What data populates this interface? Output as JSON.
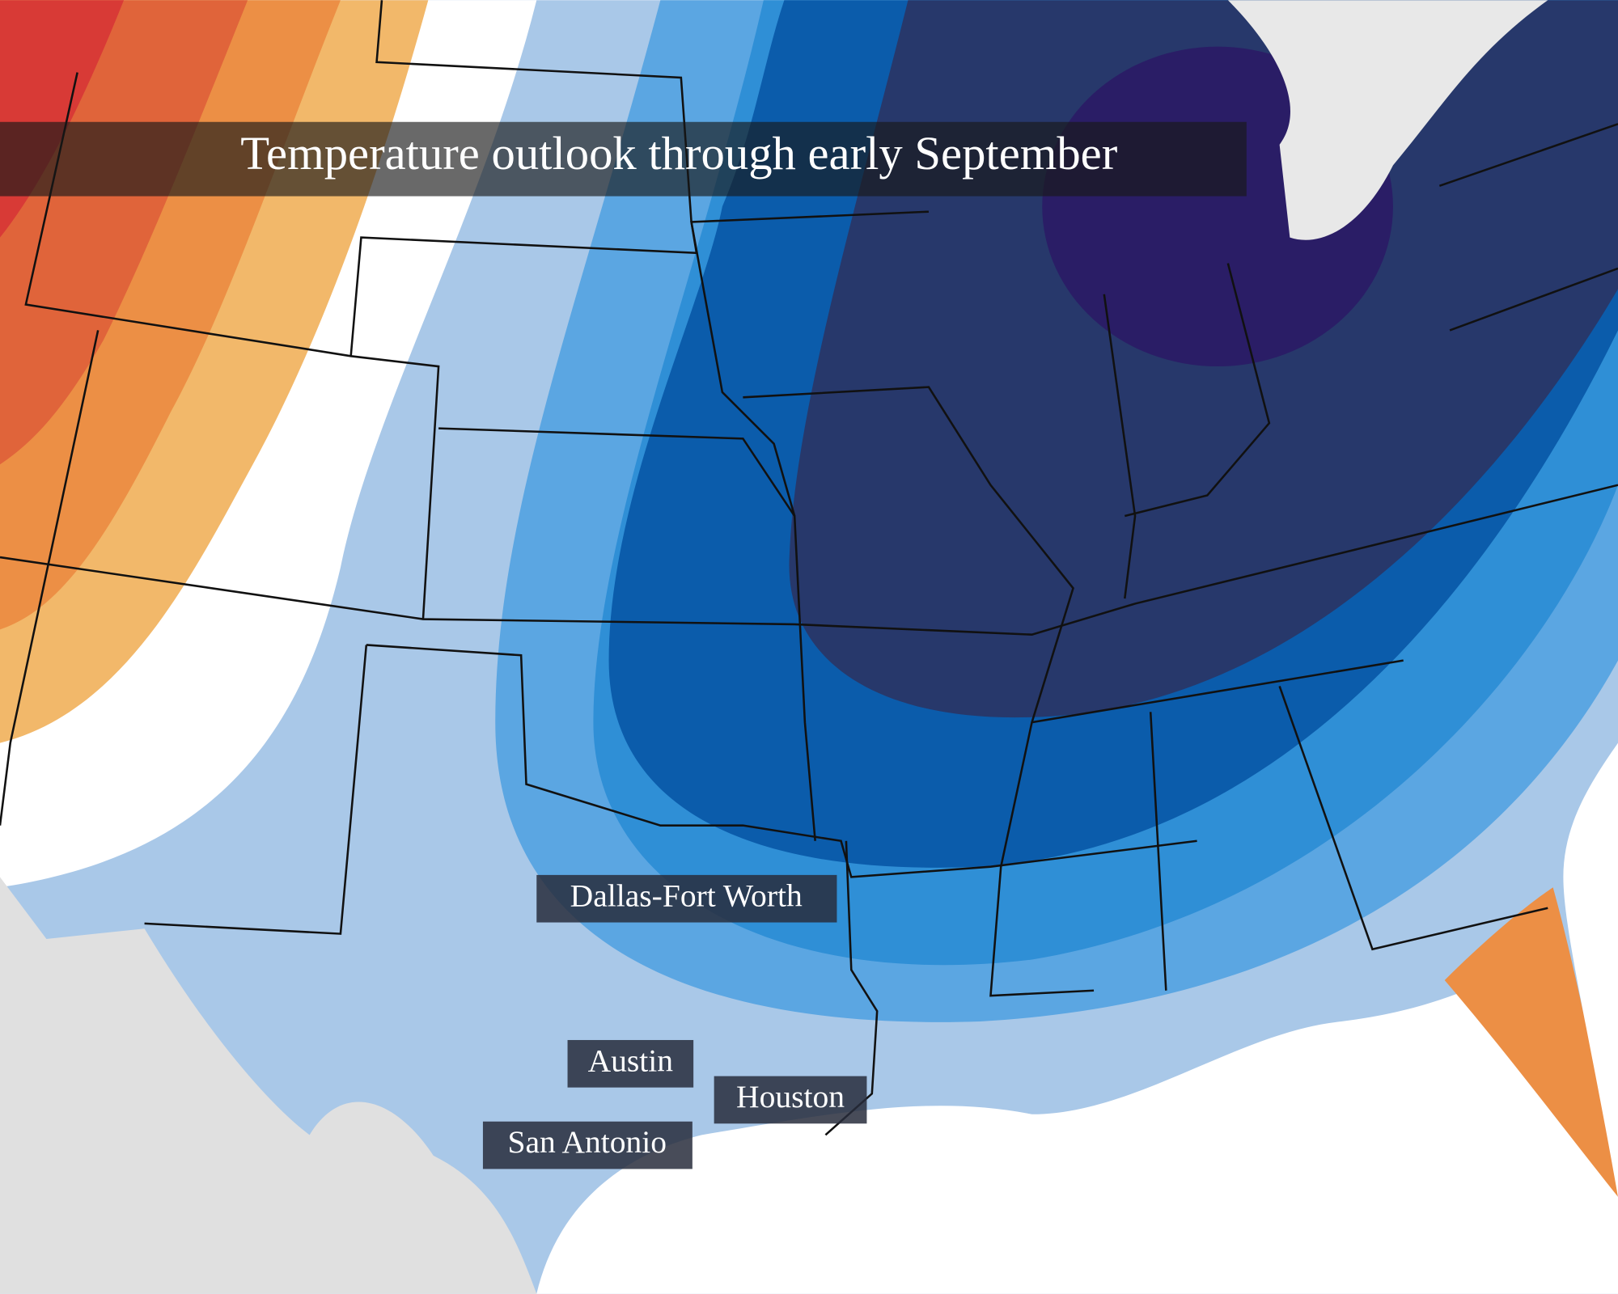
{
  "title": "Temperature outlook through early September",
  "labels": [
    "Dallas-Fort Worth",
    "Austin",
    "Houston",
    "San Antonio"
  ]
}
